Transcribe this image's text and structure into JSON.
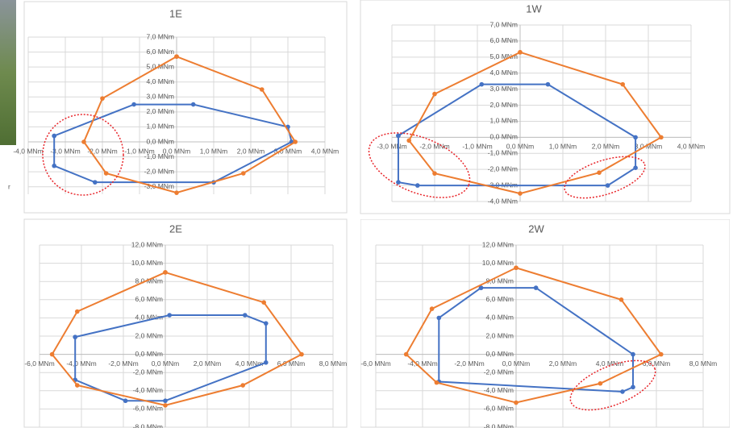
{
  "fragment_text": "r",
  "chart_data": [
    {
      "type": "line",
      "title": "1E",
      "grid": true,
      "xlim": [
        -4,
        4
      ],
      "ylim": [
        -3.5,
        7
      ],
      "xticks": [
        {
          "value": -4,
          "label": "-4,0 MNm"
        },
        {
          "value": -3,
          "label": "-3,0 MNm"
        },
        {
          "value": -2,
          "label": "-2,0 MNm"
        },
        {
          "value": -1,
          "label": "-1,0 MNm"
        },
        {
          "value": 0,
          "label": "0,0 MNm"
        },
        {
          "value": 1,
          "label": "1,0 MNm"
        },
        {
          "value": 2,
          "label": "2,0 MNm"
        },
        {
          "value": 3,
          "label": "3,0 MNm"
        },
        {
          "value": 4,
          "label": "4,0 MNm"
        }
      ],
      "yticks": [
        {
          "value": -3,
          "label": "-3,0 MNm"
        },
        {
          "value": -2,
          "label": "-2,0 MNm"
        },
        {
          "value": -1,
          "label": "-1,0 MNm"
        },
        {
          "value": 0,
          "label": "0,0 MNm"
        },
        {
          "value": 1,
          "label": "1,0 MNm"
        },
        {
          "value": 2,
          "label": "2,0 MNm"
        },
        {
          "value": 3,
          "label": "3,0 MNm"
        },
        {
          "value": 4,
          "label": "4,0 MNm"
        },
        {
          "value": 5,
          "label": "5,0 MNm"
        },
        {
          "value": 6,
          "label": "6,0 MNm"
        },
        {
          "value": 7,
          "label": "7,0 MNm"
        }
      ],
      "series": [
        {
          "color": "#4472c4",
          "x": [
            -3.3,
            -1.15,
            0.45,
            3.0,
            3.1,
            1.0,
            -2.2,
            -3.3,
            -3.3
          ],
          "values": [
            0.4,
            2.5,
            2.5,
            1.0,
            0,
            -2.7,
            -2.7,
            -1.6,
            0.4
          ]
        },
        {
          "color": "#ed7d31",
          "x": [
            0,
            2.3,
            3.2,
            1.8,
            0,
            -1.9,
            -2.5,
            -2.0,
            0
          ],
          "values": [
            5.7,
            3.5,
            0,
            -2.1,
            -3.4,
            -2.1,
            0,
            2.9,
            5.7
          ]
        }
      ]
    },
    {
      "type": "line",
      "title": "1W",
      "grid": true,
      "xlim": [
        -3,
        4
      ],
      "ylim": [
        -4,
        7
      ],
      "xticks": [
        {
          "value": -3,
          "label": "-3,0 MNm"
        },
        {
          "value": -2,
          "label": "-2,0 MNm"
        },
        {
          "value": -1,
          "label": "-1,0 MNm"
        },
        {
          "value": 0,
          "label": "0,0 MNm"
        },
        {
          "value": 1,
          "label": "1,0 MNm"
        },
        {
          "value": 2,
          "label": "2,0 MNm"
        },
        {
          "value": 3,
          "label": "3,0 MNm"
        },
        {
          "value": 4,
          "label": "4,0 MNm"
        }
      ],
      "yticks": [
        {
          "value": -4,
          "label": "-4,0 MNm"
        },
        {
          "value": -3,
          "label": "-3,0 MNm"
        },
        {
          "value": -2,
          "label": "-2,0 MNm"
        },
        {
          "value": -1,
          "label": "-1,0 MNm"
        },
        {
          "value": 0,
          "label": "0,0 MNm"
        },
        {
          "value": 1,
          "label": "1,0 MNm"
        },
        {
          "value": 2,
          "label": "2,0 MNm"
        },
        {
          "value": 3,
          "label": "3,0 MNm"
        },
        {
          "value": 4,
          "label": "4,0 MNm"
        },
        {
          "value": 5,
          "label": "5,0 MNm"
        },
        {
          "value": 6,
          "label": "6,0 MNm"
        },
        {
          "value": 7,
          "label": "7,0 MNm"
        }
      ],
      "series": [
        {
          "color": "#4472c4",
          "x": [
            -2.85,
            -0.9,
            0.65,
            2.7,
            2.7,
            2.05,
            -2.4,
            -2.85,
            -2.85
          ],
          "values": [
            0.1,
            3.3,
            3.3,
            0,
            -1.9,
            -3.0,
            -3.0,
            -2.8,
            0.1
          ]
        },
        {
          "color": "#ed7d31",
          "x": [
            0,
            2.4,
            3.3,
            1.85,
            0,
            -2.0,
            -2.6,
            -2.0,
            0
          ],
          "values": [
            5.3,
            3.3,
            0,
            -2.2,
            -3.5,
            -2.25,
            -0.2,
            2.7,
            5.3
          ]
        }
      ]
    },
    {
      "type": "line",
      "title": "2E",
      "grid": true,
      "xlim": [
        -6,
        8
      ],
      "ylim": [
        -8,
        12
      ],
      "xticks": [
        {
          "value": -6,
          "label": "-6,0 MNm"
        },
        {
          "value": -4,
          "label": "-4,0 MNm"
        },
        {
          "value": -2,
          "label": "-2,0 MNm"
        },
        {
          "value": 0,
          "label": "0,0 MNm"
        },
        {
          "value": 2,
          "label": "2,0 MNm"
        },
        {
          "value": 4,
          "label": "4,0 MNm"
        },
        {
          "value": 6,
          "label": "6,0 MNm"
        },
        {
          "value": 8,
          "label": "8,0 MNm"
        }
      ],
      "yticks": [
        {
          "value": -8,
          "label": "-8,0 MNm"
        },
        {
          "value": -6,
          "label": "-6,0 MNm"
        },
        {
          "value": -4,
          "label": "-4,0 MNm"
        },
        {
          "value": -2,
          "label": "-2,0 MNm"
        },
        {
          "value": 0,
          "label": "0,0 MNm"
        },
        {
          "value": 2,
          "label": "2,0 MNm"
        },
        {
          "value": 4,
          "label": "4,0 MNm"
        },
        {
          "value": 6,
          "label": "6,0 MNm"
        },
        {
          "value": 8,
          "label": "8,0 MNm"
        },
        {
          "value": 10,
          "label": "10,0 MNm"
        },
        {
          "value": 12,
          "label": "12,0 MNm"
        }
      ],
      "series": [
        {
          "color": "#4472c4",
          "x": [
            -4.3,
            0.2,
            3.8,
            4.8,
            4.8,
            0,
            -1.9,
            -4.3,
            -4.3
          ],
          "values": [
            1.9,
            4.3,
            4.3,
            3.4,
            -0.9,
            -5.1,
            -5.1,
            -2.8,
            1.9
          ]
        },
        {
          "color": "#ed7d31",
          "x": [
            0,
            4.7,
            6.5,
            3.7,
            0,
            -4.2,
            -5.4,
            -4.2,
            0
          ],
          "values": [
            9.0,
            5.7,
            0,
            -3.4,
            -5.6,
            -3.4,
            0,
            4.7,
            9.0
          ]
        }
      ]
    },
    {
      "type": "line",
      "title": "2W",
      "grid": true,
      "xlim": [
        -6,
        8
      ],
      "ylim": [
        -8,
        12
      ],
      "xticks": [
        {
          "value": -6,
          "label": "-6,0 MNm"
        },
        {
          "value": -4,
          "label": "-4,0 MNm"
        },
        {
          "value": -2,
          "label": "-2,0 MNm"
        },
        {
          "value": 0,
          "label": "0,0 MNm"
        },
        {
          "value": 2,
          "label": "2,0 MNm"
        },
        {
          "value": 4,
          "label": "4,0 MNm"
        },
        {
          "value": 6,
          "label": "6,0 MNm"
        },
        {
          "value": 8,
          "label": "8,0 MNm"
        }
      ],
      "yticks": [
        {
          "value": -8,
          "label": "-8,0 MNm"
        },
        {
          "value": -6,
          "label": "-6,0 MNm"
        },
        {
          "value": -4,
          "label": "-4,0 MNm"
        },
        {
          "value": -2,
          "label": "-2,0 MNm"
        },
        {
          "value": 0,
          "label": "0,0 MNm"
        },
        {
          "value": 2,
          "label": "2,0 MNm"
        },
        {
          "value": 4,
          "label": "4,0 MNm"
        },
        {
          "value": 6,
          "label": "6,0 MNm"
        },
        {
          "value": 8,
          "label": "8,0 MNm"
        },
        {
          "value": 10,
          "label": "10,0 MNm"
        },
        {
          "value": 12,
          "label": "12,0 MNm"
        }
      ],
      "series": [
        {
          "color": "#4472c4",
          "x": [
            -1.5,
            0.85,
            5.0,
            5.0,
            4.55,
            -3.3,
            -3.3,
            -1.5
          ],
          "values": [
            7.3,
            7.3,
            0,
            -3.6,
            -4.1,
            -3.0,
            4.0,
            7.3
          ]
        },
        {
          "color": "#ed7d31",
          "x": [
            0,
            4.5,
            6.2,
            3.6,
            0,
            -3.4,
            -4.7,
            -3.6,
            0
          ],
          "values": [
            9.5,
            6.0,
            0,
            -3.2,
            -5.3,
            -3.1,
            0,
            5.0,
            9.5
          ]
        }
      ]
    }
  ]
}
